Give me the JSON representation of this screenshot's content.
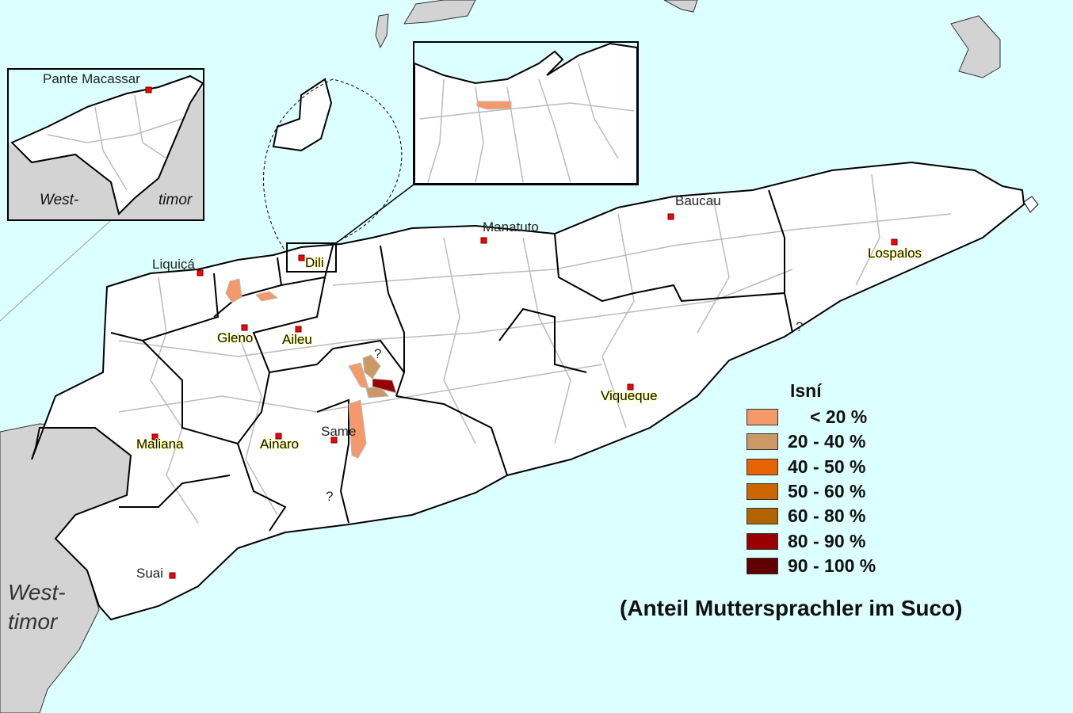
{
  "map": {
    "inset_oecusse": {
      "capital": "Pante Macassar",
      "neighbor_line1": "West-",
      "neighbor_line2": "timor"
    },
    "neighbor": {
      "line1": "West-",
      "line2": "timor"
    },
    "places": {
      "dili": "Dili",
      "liquica": "Liquiçá",
      "manatuto": "Manatuto",
      "baucau": "Baucau",
      "lospalos": "Lospalos",
      "gleno": "Gleno",
      "aileu": "Aileu",
      "same": "Same",
      "viqueque": "Viqueque",
      "maliana": "Maliana",
      "ainaro": "Ainaro",
      "suai": "Suai"
    },
    "unknown_marker": "?",
    "colors": {
      "sea": "#dcffff",
      "land": "#ffffff",
      "foreign_land": "#d3d3d3",
      "capital_marker": "#ff0000",
      "suco_border": "#bbbbbb",
      "district_border": "#000000"
    }
  },
  "legend": {
    "title": "Isní",
    "items": [
      {
        "label": "< 20 %",
        "color": "#f4996a"
      },
      {
        "label": "20 - 40 %",
        "color": "#cc9966"
      },
      {
        "label": "40 - 50 %",
        "color": "#e86400"
      },
      {
        "label": "50 - 60 %",
        "color": "#cc6600"
      },
      {
        "label": "60 - 80 %",
        "color": "#b06400"
      },
      {
        "label": "80 - 90 %",
        "color": "#990000"
      },
      {
        "label": "90 - 100 %",
        "color": "#600000"
      }
    ]
  },
  "subtitle": "(Anteil Muttersprachler im Suco)"
}
